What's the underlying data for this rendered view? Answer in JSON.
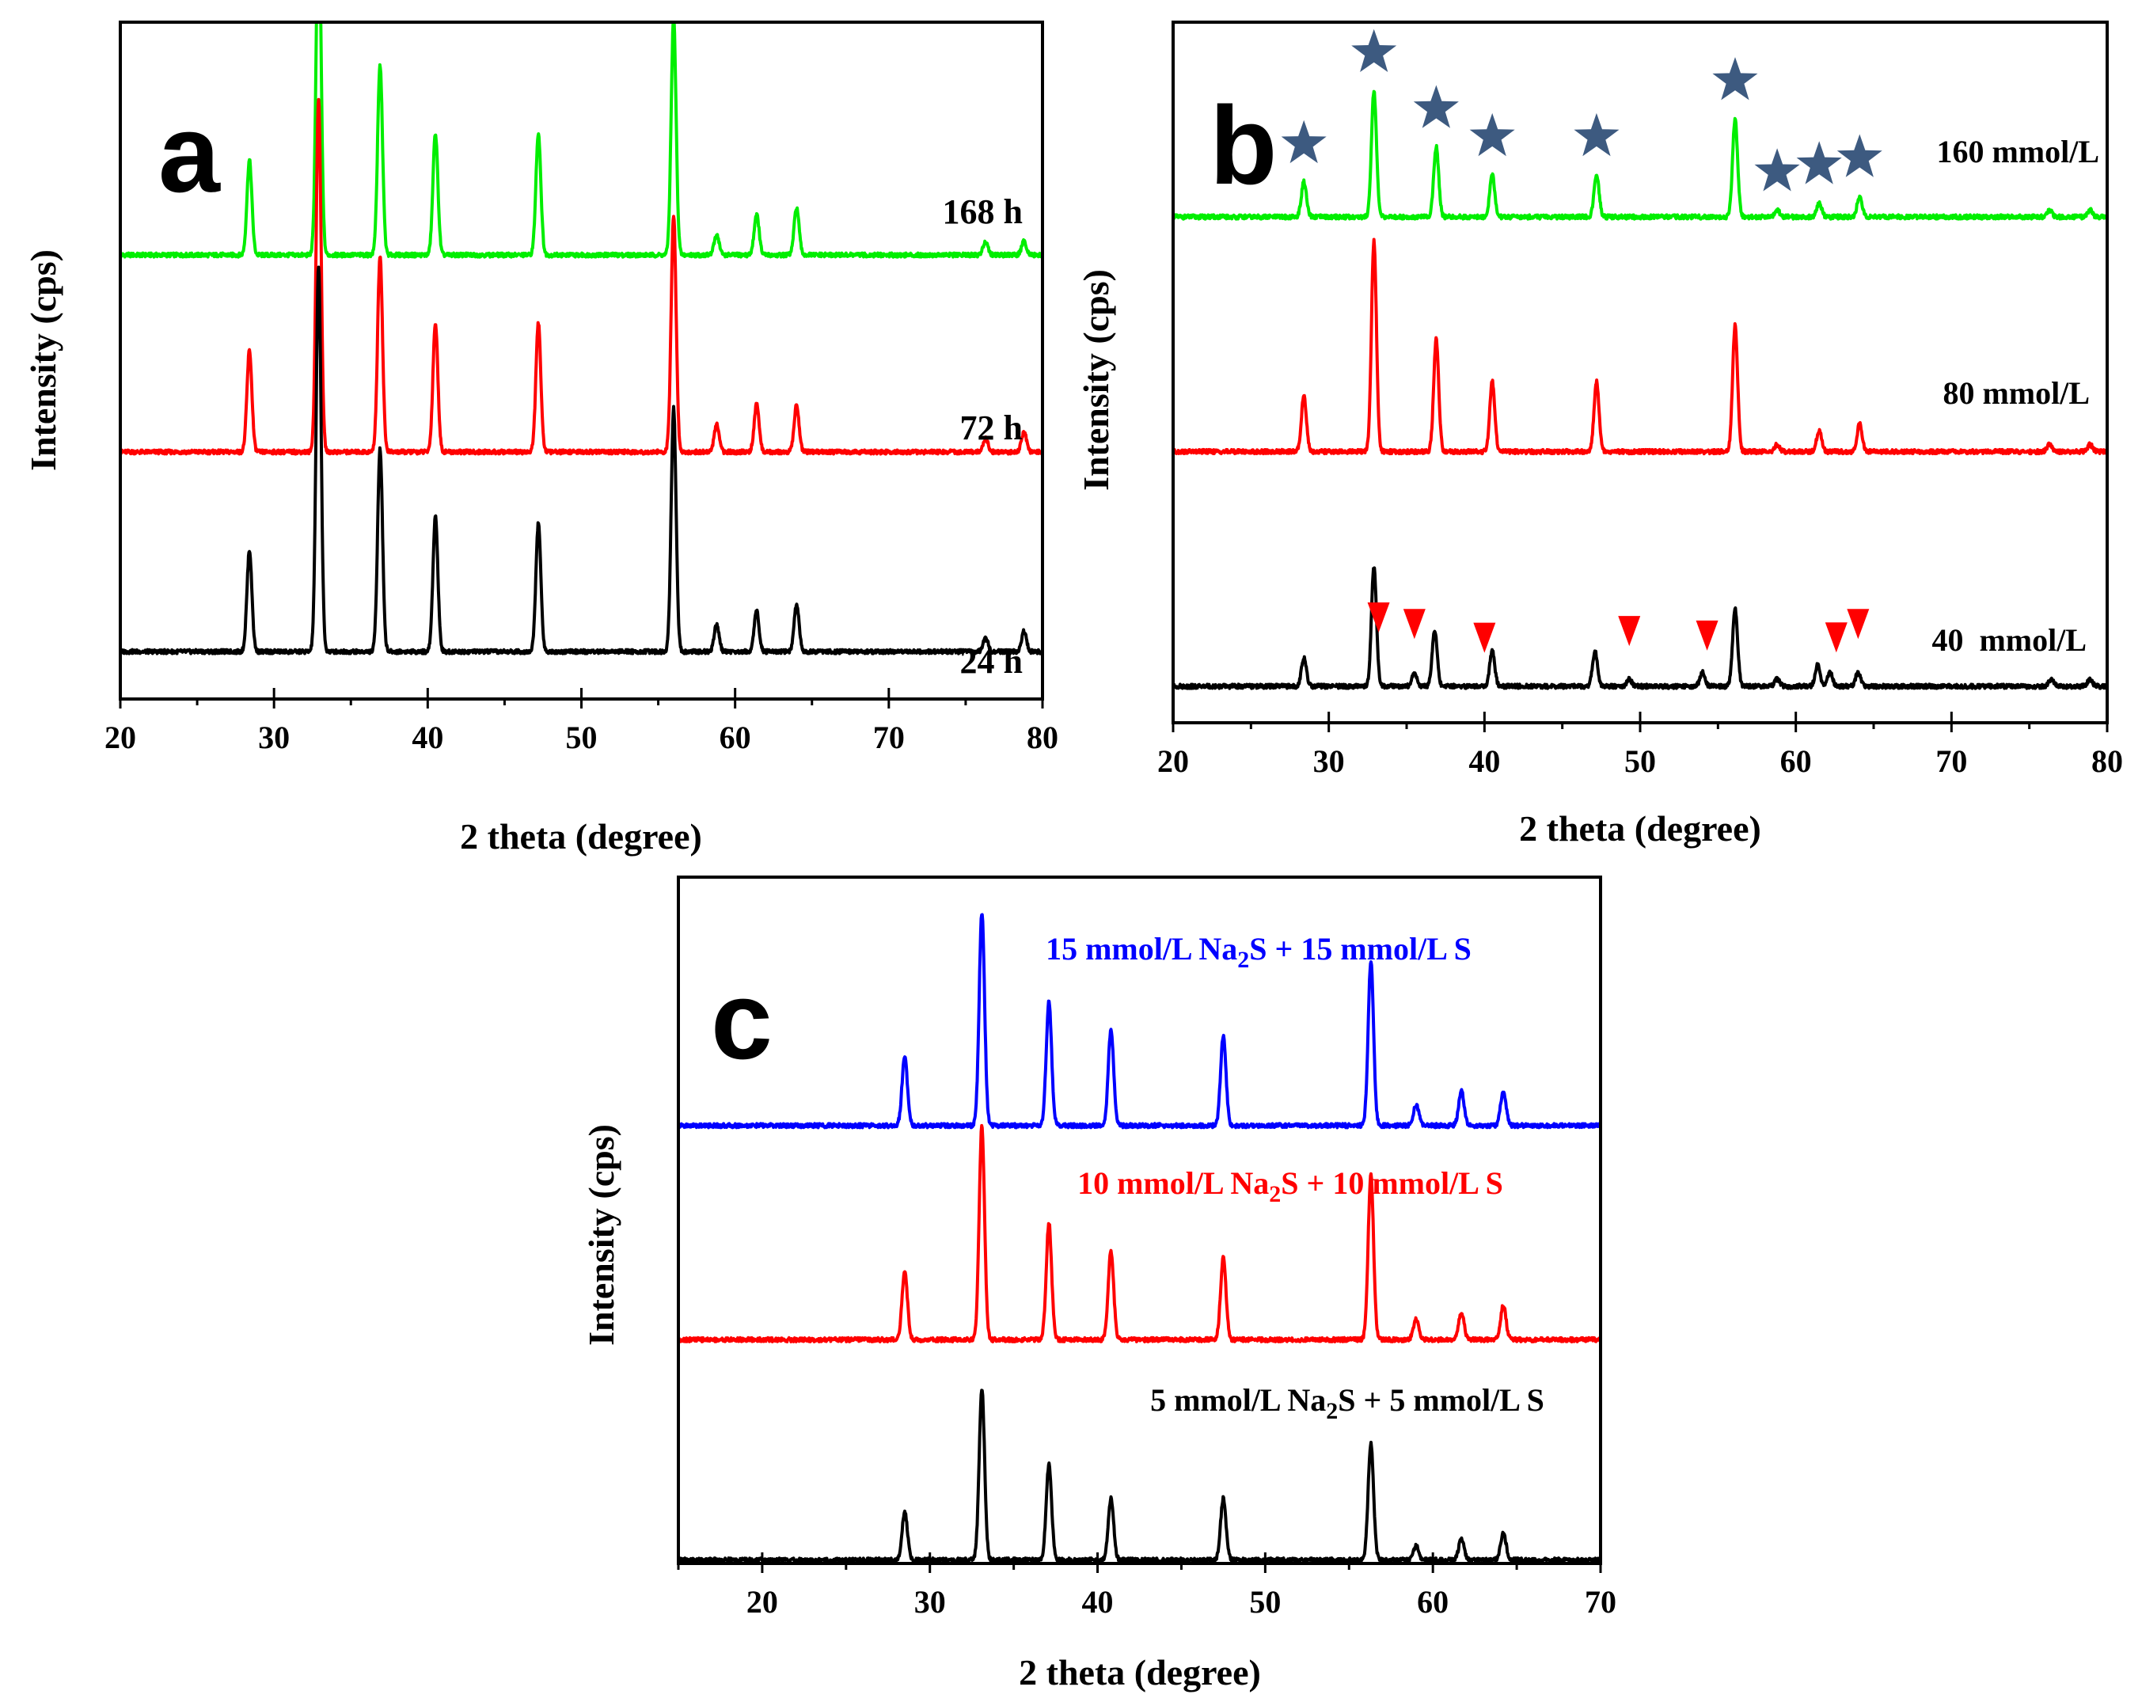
{
  "figure": {
    "x_unit_label": "2 theta (degree)",
    "y_unit_label": "Intensity (cps)"
  },
  "chart_data": [
    {
      "type": "line",
      "panel": "a",
      "xlabel": "2 theta (degree)",
      "ylabel": "Intensity (cps)",
      "xlim": [
        20,
        80
      ],
      "xticks": [
        20,
        30,
        40,
        50,
        60,
        70,
        80
      ],
      "y_ticks_shown": false,
      "grid": false,
      "series": [
        {
          "name": "168 h",
          "color": "#00ee00",
          "baseline": 0.656,
          "peaks": [
            [
              28.4,
              0.14
            ],
            [
              32.9,
              0.51
            ],
            [
              36.9,
              0.28
            ],
            [
              40.5,
              0.18
            ],
            [
              47.2,
              0.18
            ],
            [
              56.0,
              0.35
            ],
            [
              58.8,
              0.03
            ],
            [
              61.4,
              0.06
            ],
            [
              64.0,
              0.07
            ],
            [
              76.3,
              0.02
            ],
            [
              78.8,
              0.02
            ]
          ]
        },
        {
          "name": "72 h",
          "color": "#ff0000",
          "baseline": 0.365,
          "peaks": [
            [
              28.4,
              0.15
            ],
            [
              32.9,
              0.52
            ],
            [
              36.9,
              0.29
            ],
            [
              40.5,
              0.19
            ],
            [
              47.2,
              0.19
            ],
            [
              56.0,
              0.35
            ],
            [
              58.8,
              0.04
            ],
            [
              61.4,
              0.07
            ],
            [
              64.0,
              0.07
            ],
            [
              76.3,
              0.02
            ],
            [
              78.8,
              0.03
            ]
          ]
        },
        {
          "name": "24 h",
          "color": "#000000",
          "baseline": 0.07,
          "peaks": [
            [
              28.4,
              0.15
            ],
            [
              32.9,
              0.57
            ],
            [
              36.9,
              0.3
            ],
            [
              40.5,
              0.2
            ],
            [
              47.2,
              0.19
            ],
            [
              56.0,
              0.36
            ],
            [
              58.8,
              0.04
            ],
            [
              61.4,
              0.06
            ],
            [
              64.0,
              0.07
            ],
            [
              76.3,
              0.02
            ],
            [
              78.8,
              0.03
            ]
          ]
        }
      ]
    },
    {
      "type": "line",
      "panel": "b",
      "xlabel": "2 theta (degree)",
      "ylabel": "Intensity (cps)",
      "xlim": [
        20,
        80
      ],
      "xticks": [
        20,
        30,
        40,
        50,
        60,
        70,
        80
      ],
      "y_ticks_shown": false,
      "grid": false,
      "series": [
        {
          "name": "160 mmol/L",
          "color": "#00ee00",
          "baseline": 0.722,
          "peaks": [
            [
              28.4,
              0.05
            ],
            [
              32.9,
              0.18
            ],
            [
              36.9,
              0.1
            ],
            [
              40.5,
              0.06
            ],
            [
              47.2,
              0.06
            ],
            [
              56.1,
              0.14
            ],
            [
              58.8,
              0.01
            ],
            [
              61.5,
              0.02
            ],
            [
              64.1,
              0.03
            ],
            [
              76.3,
              0.01
            ],
            [
              78.9,
              0.01
            ]
          ]
        },
        {
          "name": "80 mmol/L",
          "color": "#ff0000",
          "baseline": 0.387,
          "peaks": [
            [
              28.4,
              0.08
            ],
            [
              32.9,
              0.3
            ],
            [
              36.9,
              0.16
            ],
            [
              40.5,
              0.1
            ],
            [
              47.2,
              0.1
            ],
            [
              56.1,
              0.18
            ],
            [
              58.8,
              0.01
            ],
            [
              61.5,
              0.03
            ],
            [
              64.1,
              0.04
            ],
            [
              76.3,
              0.01
            ],
            [
              78.9,
              0.01
            ]
          ]
        },
        {
          "name": "40  mmol/L",
          "color": "#000000",
          "baseline": 0.052,
          "peaks": [
            [
              28.4,
              0.04
            ],
            [
              32.9,
              0.17
            ],
            [
              35.5,
              0.02
            ],
            [
              36.8,
              0.08
            ],
            [
              40.5,
              0.05
            ],
            [
              47.1,
              0.05
            ],
            [
              49.3,
              0.01
            ],
            [
              54.0,
              0.02
            ],
            [
              56.1,
              0.11
            ],
            [
              58.8,
              0.01
            ],
            [
              61.4,
              0.03
            ],
            [
              62.2,
              0.02
            ],
            [
              64.0,
              0.02
            ],
            [
              76.4,
              0.01
            ],
            [
              78.9,
              0.01
            ]
          ]
        }
      ],
      "markers": {
        "star": {
          "color": "#3d5a80",
          "series": "160 mmol/L",
          "x": [
            28.4,
            32.9,
            36.9,
            40.5,
            47.2,
            56.1,
            58.8,
            61.5,
            64.1
          ]
        },
        "triangle": {
          "color": "#ff0000",
          "series": "40  mmol/L",
          "x": [
            33.2,
            35.5,
            40.0,
            49.3,
            54.3,
            62.6,
            64.0
          ]
        }
      }
    },
    {
      "type": "line",
      "panel": "c",
      "xlabel": "2 theta (degree)",
      "ylabel": "Intensity (cps)",
      "xlim": [
        15,
        70
      ],
      "xticks": [
        20,
        30,
        40,
        50,
        60,
        70
      ],
      "y_ticks_shown": false,
      "grid": false,
      "series": [
        {
          "name": "15 mmol/L Na2S + 15 mmol/L S",
          "color": "#0000ff",
          "baseline": 0.638,
          "peaks": [
            [
              28.5,
              0.1
            ],
            [
              33.1,
              0.31
            ],
            [
              37.1,
              0.18
            ],
            [
              40.8,
              0.14
            ],
            [
              47.5,
              0.13
            ],
            [
              56.3,
              0.24
            ],
            [
              59.0,
              0.03
            ],
            [
              61.7,
              0.05
            ],
            [
              64.2,
              0.05
            ]
          ]
        },
        {
          "name": "10 mmol/L Na2S + 10 mmol/L S",
          "color": "#ff0000",
          "baseline": 0.326,
          "peaks": [
            [
              28.5,
              0.1
            ],
            [
              33.1,
              0.31
            ],
            [
              37.1,
              0.17
            ],
            [
              40.8,
              0.13
            ],
            [
              47.5,
              0.12
            ],
            [
              56.3,
              0.24
            ],
            [
              59.0,
              0.03
            ],
            [
              61.7,
              0.04
            ],
            [
              64.2,
              0.05
            ]
          ]
        },
        {
          "name": "5 mmol/L Na2S + 5 mmol/L S",
          "color": "#000000",
          "baseline": 0.005,
          "peaks": [
            [
              28.5,
              0.07
            ],
            [
              33.1,
              0.25
            ],
            [
              37.1,
              0.14
            ],
            [
              40.8,
              0.09
            ],
            [
              47.5,
              0.09
            ],
            [
              56.3,
              0.17
            ],
            [
              59.0,
              0.02
            ],
            [
              61.7,
              0.03
            ],
            [
              64.2,
              0.04
            ]
          ]
        }
      ]
    }
  ]
}
